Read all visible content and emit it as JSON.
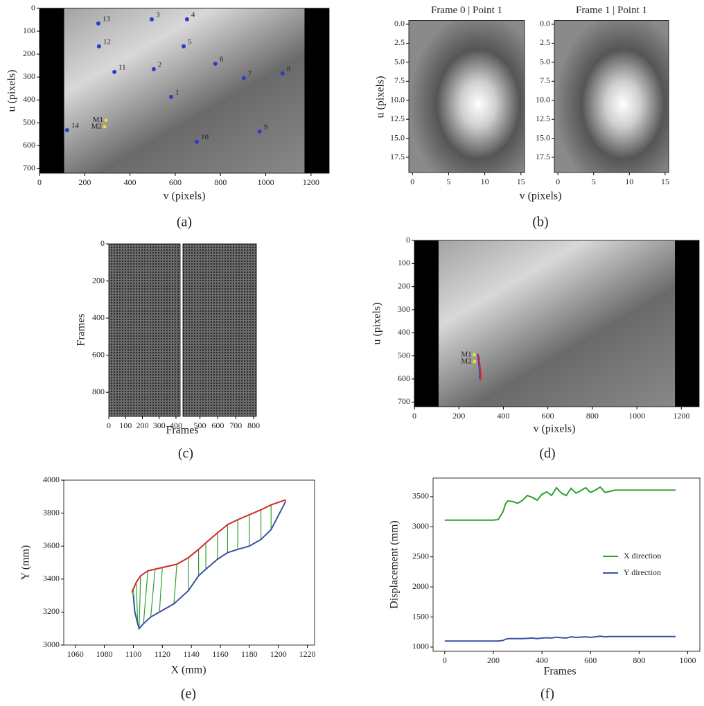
{
  "chart_data": [
    {
      "type": "image",
      "caption": "(a)",
      "xlabel": "v (pixels)",
      "ylabel": "u (pixels)",
      "xlim": [
        0,
        1280
      ],
      "ylim": [
        720,
        0
      ],
      "xticks": [
        0,
        200,
        400,
        600,
        800,
        1000,
        1200
      ],
      "yticks": [
        0,
        100,
        200,
        300,
        400,
        500,
        600,
        700
      ],
      "points": {
        "color": "#2d3cc8",
        "labels": [
          "1",
          "2",
          "3",
          "4",
          "5",
          "6",
          "7",
          "8",
          "9",
          "10",
          "11",
          "12",
          "13",
          "14"
        ],
        "x": [
          582,
          505,
          496,
          652,
          637,
          777,
          903,
          1074,
          973,
          695,
          331,
          263,
          260,
          122
        ],
        "y": [
          387,
          266,
          48,
          48,
          166,
          242,
          305,
          284,
          538,
          583,
          278,
          166,
          66,
          532
        ]
      },
      "markers": {
        "color": "#f0e020",
        "labels": [
          "M1",
          "M2"
        ],
        "x": [
          294,
          288
        ],
        "y": [
          489,
          517
        ]
      }
    },
    {
      "type": "image",
      "caption": "(b)",
      "xlabel": "v (pixels)",
      "ylabel": "u (pixels)",
      "panels": [
        {
          "title": "Frame 0 | Point 1",
          "xlim": [
            -0.5,
            15.5
          ],
          "ylim": [
            19.5,
            -0.5
          ],
          "xticks": [
            0,
            5,
            10,
            15
          ],
          "yticks": [
            {
              "value": 0,
              "label": "0.0"
            },
            2.5,
            {
              "value": 5,
              "label": "5.0"
            },
            7.5,
            {
              "value": 10,
              "label": "10.0"
            },
            12.5,
            {
              "value": 15,
              "label": "15.0"
            },
            17.5
          ]
        },
        {
          "title": "Frame 1 | Point 1",
          "xlim": [
            -0.5,
            15.5
          ],
          "ylim": [
            19.5,
            -0.5
          ],
          "xticks": [
            0,
            5,
            10,
            15
          ],
          "yticks": [
            {
              "value": 0,
              "label": "0.0"
            },
            2.5,
            {
              "value": 5,
              "label": "5.0"
            },
            7.5,
            {
              "value": 10,
              "label": "10.0"
            },
            12.5,
            {
              "value": 15,
              "label": "15.0"
            },
            17.5
          ]
        }
      ]
    },
    {
      "type": "image",
      "caption": "(c)",
      "xlabel": "Frames",
      "ylabel": "Frames",
      "panels": [
        {
          "xlim": [
            0,
            425
          ],
          "ylim": [
            930,
            0
          ],
          "xticks": [
            0,
            100,
            200,
            300,
            400
          ],
          "yticks": [
            0,
            200,
            400,
            600,
            800
          ]
        },
        {
          "xlim": [
            405,
            815
          ],
          "ylim": [
            930,
            0
          ],
          "xticks": [
            500,
            600,
            700,
            800
          ]
        }
      ]
    },
    {
      "type": "image",
      "caption": "(d)",
      "xlabel": "v (pixels)",
      "ylabel": "u (pixels)",
      "xlim": [
        0,
        1280
      ],
      "ylim": [
        720,
        0
      ],
      "xticks": [
        0,
        200,
        400,
        600,
        800,
        1000,
        1200
      ],
      "yticks": [
        0,
        100,
        200,
        300,
        400,
        500,
        600,
        700
      ],
      "markers": {
        "color": "#f0e020",
        "labels": [
          "M1",
          "M2"
        ],
        "x": [
          270,
          270
        ],
        "y": [
          495,
          525
        ]
      },
      "series": [
        {
          "color": "#2d3cc8",
          "x": [
            284,
            288,
            292,
            295,
            293
          ],
          "values": [
            490,
            520,
            550,
            580,
            600
          ]
        },
        {
          "color": "#d62728",
          "x": [
            288,
            292,
            296,
            299,
            297
          ],
          "values": [
            495,
            525,
            555,
            585,
            605
          ]
        }
      ]
    },
    {
      "type": "line",
      "caption": "(e)",
      "xlabel": "X (mm)",
      "ylabel": "Y (mm)",
      "xlim": [
        1052,
        1225
      ],
      "ylim": [
        3000,
        4000
      ],
      "xticks": [
        1060,
        1080,
        1100,
        1120,
        1140,
        1160,
        1180,
        1200,
        1220
      ],
      "yticks": [
        3000,
        3200,
        3400,
        3600,
        3800,
        4000
      ],
      "connector_color": "#2ca02c",
      "series": [
        {
          "color": "#d62728",
          "x": [
            1099,
            1100,
            1102,
            1105,
            1110,
            1115,
            1120,
            1130,
            1138,
            1145,
            1150,
            1158,
            1165,
            1172,
            1180,
            1188,
            1195,
            1205
          ],
          "values": [
            3320,
            3340,
            3380,
            3420,
            3450,
            3460,
            3470,
            3490,
            3530,
            3580,
            3620,
            3680,
            3730,
            3760,
            3790,
            3820,
            3850,
            3880
          ]
        },
        {
          "color": "#3a4fa8",
          "x": [
            1100,
            1101,
            1103,
            1104,
            1107,
            1112,
            1118,
            1128,
            1138,
            1145,
            1150,
            1158,
            1165,
            1172,
            1180,
            1188,
            1195,
            1205
          ],
          "values": [
            3300,
            3200,
            3130,
            3100,
            3130,
            3170,
            3200,
            3250,
            3330,
            3420,
            3460,
            3520,
            3560,
            3580,
            3600,
            3640,
            3700,
            3870
          ]
        }
      ]
    },
    {
      "type": "line",
      "caption": "(f)",
      "xlabel": "Frames",
      "ylabel": "Displacement (mm)",
      "xlim": [
        -48,
        1050
      ],
      "ylim": [
        930,
        3810
      ],
      "xticks": [
        0,
        200,
        400,
        600,
        800,
        1000
      ],
      "yticks": [
        1000,
        1500,
        2000,
        2500,
        3000,
        3500
      ],
      "legend": "center right",
      "series": [
        {
          "name": "X direction",
          "color": "#2ca02c",
          "x": [
            0,
            100,
            200,
            220,
            240,
            250,
            260,
            280,
            300,
            320,
            340,
            360,
            380,
            400,
            420,
            440,
            460,
            480,
            500,
            520,
            540,
            560,
            580,
            600,
            620,
            640,
            660,
            680,
            700,
            750,
            800,
            900,
            950
          ],
          "values": [
            3110,
            3110,
            3110,
            3120,
            3250,
            3380,
            3430,
            3420,
            3390,
            3440,
            3520,
            3490,
            3440,
            3540,
            3580,
            3520,
            3650,
            3560,
            3520,
            3640,
            3560,
            3600,
            3650,
            3570,
            3610,
            3660,
            3570,
            3590,
            3610,
            3610,
            3610,
            3610,
            3610
          ]
        },
        {
          "name": "Y direction",
          "color": "#3a4fa8",
          "x": [
            0,
            100,
            200,
            220,
            240,
            250,
            260,
            280,
            300,
            320,
            340,
            360,
            380,
            400,
            420,
            440,
            460,
            480,
            500,
            520,
            540,
            560,
            580,
            600,
            620,
            640,
            660,
            680,
            700,
            750,
            800,
            900,
            950
          ],
          "values": [
            1100,
            1100,
            1100,
            1100,
            1110,
            1130,
            1140,
            1140,
            1140,
            1140,
            1145,
            1150,
            1140,
            1150,
            1155,
            1150,
            1165,
            1155,
            1150,
            1170,
            1160,
            1165,
            1170,
            1160,
            1170,
            1180,
            1170,
            1175,
            1175,
            1175,
            1175,
            1175,
            1175
          ]
        }
      ]
    }
  ]
}
